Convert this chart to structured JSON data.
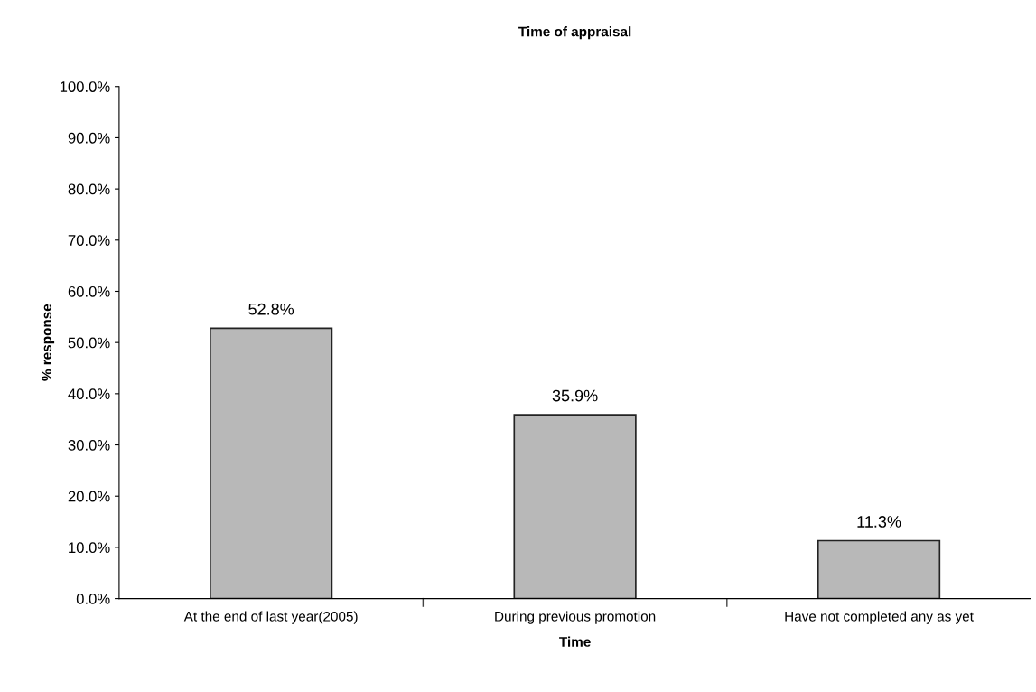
{
  "chart_data": {
    "type": "bar",
    "title": "Time of appraisal",
    "xlabel": "Time",
    "ylabel": "% response",
    "categories": [
      "At the end of last year(2005)",
      "During previous promotion",
      "Have not completed any as yet"
    ],
    "values": [
      52.8,
      35.9,
      11.3
    ],
    "value_labels": [
      "52.8%",
      "35.9%",
      "11.3%"
    ],
    "color": "#b8b8b8",
    "ylim": [
      0,
      100
    ],
    "yticks": [
      {
        "value": 0,
        "label": "0.0%"
      },
      {
        "value": 10,
        "label": "10.0%"
      },
      {
        "value": 20,
        "label": "20.0%"
      },
      {
        "value": 30,
        "label": "30.0%"
      },
      {
        "value": 40,
        "label": "40.0%"
      },
      {
        "value": 50,
        "label": "50.0%"
      },
      {
        "value": 60,
        "label": "60.0%"
      },
      {
        "value": 70,
        "label": "70.0%"
      },
      {
        "value": 80,
        "label": "80.0%"
      },
      {
        "value": 90,
        "label": "90.0%"
      },
      {
        "value": 100,
        "label": "100.0%"
      }
    ],
    "grid": false
  }
}
